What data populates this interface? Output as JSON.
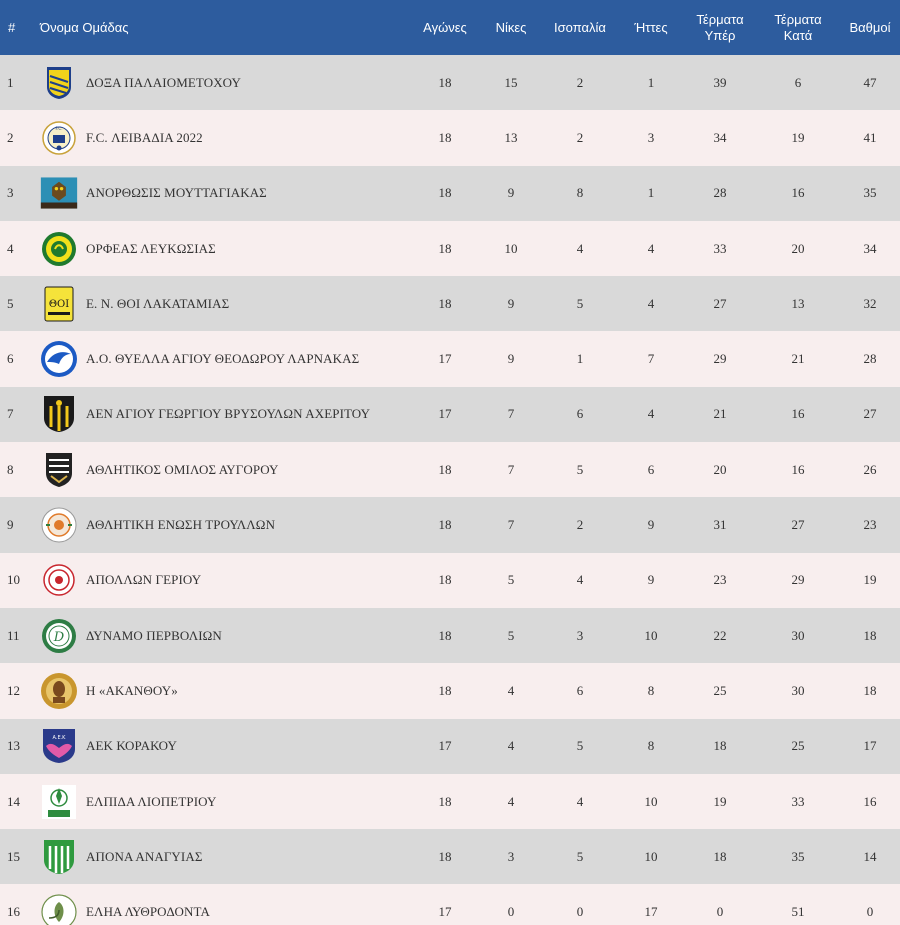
{
  "header": {
    "pos": "#",
    "team": "Όνομα Ομάδας",
    "played": "Αγώνες",
    "wins": "Νίκες",
    "draws": "Ισοπαλία",
    "losses": "Ήττες",
    "gf_line1": "Τέρματα",
    "gf_line2": "Υπέρ",
    "ga_line1": "Τέρματα",
    "ga_line2": "Κατά",
    "points": "Βαθμοί"
  },
  "colors": {
    "header_bg": "#2d5c9e",
    "row_odd": "#d9d9d9",
    "row_even": "#f8eeee"
  },
  "rows": [
    {
      "pos": "1",
      "team": "ΔΟΞΑ ΠΑΛΑΙΟΜΕΤΟΧΟΥ",
      "played": "18",
      "wins": "15",
      "draws": "2",
      "losses": "1",
      "gf": "39",
      "ga": "6",
      "pts": "47",
      "logo": "doxa-crest-icon"
    },
    {
      "pos": "2",
      "team": "F.C. ΛΕΙΒΑΔΙΑ 2022",
      "played": "18",
      "wins": "13",
      "draws": "2",
      "losses": "3",
      "gf": "34",
      "ga": "19",
      "pts": "41",
      "logo": "leivadia-crest-icon"
    },
    {
      "pos": "3",
      "team": "ΑΝΟΡΘΩΣΙΣ ΜΟΥΤΤΑΓΙΑΚΑΣ",
      "played": "18",
      "wins": "9",
      "draws": "8",
      "losses": "1",
      "gf": "28",
      "ga": "16",
      "pts": "35",
      "logo": "anorthosis-crest-icon"
    },
    {
      "pos": "4",
      "team": "ΟΡΦΕΑΣ ΛΕΥΚΩΣΙΑΣ",
      "played": "18",
      "wins": "10",
      "draws": "4",
      "losses": "4",
      "gf": "33",
      "ga": "20",
      "pts": "34",
      "logo": "orfeas-crest-icon"
    },
    {
      "pos": "5",
      "team": "Ε. Ν. ΘΟΙ ΛΑΚΑΤΑΜΙΑΣ",
      "played": "18",
      "wins": "9",
      "draws": "5",
      "losses": "4",
      "gf": "27",
      "ga": "13",
      "pts": "32",
      "logo": "thoi-crest-icon"
    },
    {
      "pos": "6",
      "team": "Α.Ο. ΘΥΕΛΛΑ ΑΓΙΟΥ ΘΕΟΔΩΡΟΥ ΛΑΡΝΑΚΑΣ",
      "played": "17",
      "wins": "9",
      "draws": "1",
      "losses": "7",
      "gf": "29",
      "ga": "21",
      "pts": "28",
      "logo": "thyella-crest-icon"
    },
    {
      "pos": "7",
      "team": "ΑΕΝ ΑΓΙΟΥ ΓΕΩΡΓΙΟΥ ΒΡΥΣΟΥΛΩΝ ΑΧΕΡΙΤΟΥ",
      "played": "17",
      "wins": "7",
      "draws": "6",
      "losses": "4",
      "gf": "21",
      "ga": "16",
      "pts": "27",
      "logo": "aen-crest-icon"
    },
    {
      "pos": "8",
      "team": "ΑΘΛΗΤΙΚΟΣ ΟΜΙΛΟΣ ΑΥΓΟΡΟΥ",
      "played": "18",
      "wins": "7",
      "draws": "5",
      "losses": "6",
      "gf": "20",
      "ga": "16",
      "pts": "26",
      "logo": "avgorou-crest-icon"
    },
    {
      "pos": "9",
      "team": "ΑΘΛΗΤΙΚΗ ΕΝΩΣΗ ΤΡΟΥΛΛΩΝ",
      "played": "18",
      "wins": "7",
      "draws": "2",
      "losses": "9",
      "gf": "31",
      "ga": "27",
      "pts": "23",
      "logo": "troullon-crest-icon"
    },
    {
      "pos": "10",
      "team": "ΑΠΟΛΛΩΝ ΓΕΡΙΟΥ",
      "played": "18",
      "wins": "5",
      "draws": "4",
      "losses": "9",
      "gf": "23",
      "ga": "29",
      "pts": "19",
      "logo": "apollon-crest-icon"
    },
    {
      "pos": "11",
      "team": "ΔΥΝΑΜΟ ΠΕΡΒΟΛΙΩΝ",
      "played": "18",
      "wins": "5",
      "draws": "3",
      "losses": "10",
      "gf": "22",
      "ga": "30",
      "pts": "18",
      "logo": "dynamo-crest-icon"
    },
    {
      "pos": "12",
      "team": "Η «ΑΚΑΝΘΟΥ»",
      "played": "18",
      "wins": "4",
      "draws": "6",
      "losses": "8",
      "gf": "25",
      "ga": "30",
      "pts": "18",
      "logo": "akanthou-crest-icon"
    },
    {
      "pos": "13",
      "team": "ΑΕΚ ΚΟΡΑΚΟΥ",
      "played": "17",
      "wins": "4",
      "draws": "5",
      "losses": "8",
      "gf": "18",
      "ga": "25",
      "pts": "17",
      "logo": "aek-crest-icon"
    },
    {
      "pos": "14",
      "team": "ΕΛΠΙΔΑ ΛΙΟΠΕΤΡΙΟΥ",
      "played": "18",
      "wins": "4",
      "draws": "4",
      "losses": "10",
      "gf": "19",
      "ga": "33",
      "pts": "16",
      "logo": "elpida-crest-icon"
    },
    {
      "pos": "15",
      "team": "ΑΠΟΝΑ ΑΝΑΓΥΙΑΣ",
      "played": "18",
      "wins": "3",
      "draws": "5",
      "losses": "10",
      "gf": "18",
      "ga": "35",
      "pts": "14",
      "logo": "apona-crest-icon"
    },
    {
      "pos": "16",
      "team": "ΕΛΗΑ ΛΥΘΡΟΔΟΝΤΑ",
      "played": "17",
      "wins": "0",
      "draws": "0",
      "losses": "17",
      "gf": "0",
      "ga": "51",
      "pts": "0",
      "logo": "elia-crest-icon"
    }
  ]
}
